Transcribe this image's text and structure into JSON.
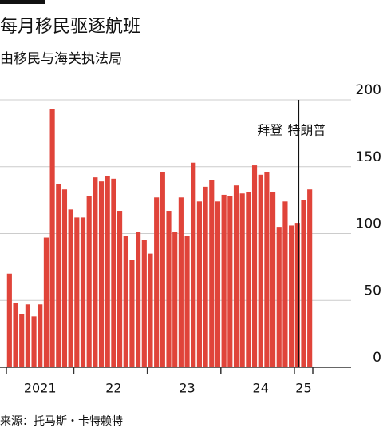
{
  "chart_data": {
    "type": "bar",
    "title": "每月移民驱逐航班",
    "subtitle": "由移民与海关执法局",
    "source": "来源：托马斯・卡特赖特",
    "annotations": [
      "拜登",
      "特朗普"
    ],
    "categories": [
      null,
      null,
      null,
      null,
      null,
      "2021",
      null,
      null,
      null,
      null,
      null,
      null,
      null,
      null,
      null,
      null,
      null,
      "22",
      null,
      null,
      null,
      null,
      null,
      null,
      null,
      null,
      null,
      null,
      null,
      "23",
      null,
      null,
      null,
      null,
      null,
      null,
      null,
      null,
      null,
      null,
      null,
      "24",
      null,
      null,
      null,
      null,
      null,
      null,
      "25",
      null
    ],
    "values": [
      70,
      48,
      40,
      47,
      38,
      47,
      97,
      193,
      137,
      133,
      118,
      112,
      112,
      128,
      142,
      139,
      143,
      141,
      117,
      98,
      80,
      101,
      95,
      85,
      127,
      146,
      117,
      101,
      127,
      98,
      153,
      124,
      135,
      140,
      124,
      129,
      128,
      136,
      130,
      131,
      151,
      144,
      146,
      131,
      105,
      124,
      106,
      108,
      125,
      133
    ],
    "color": "#e0443a",
    "ylim": [
      0,
      200
    ],
    "yticks": [
      0,
      50,
      100,
      150,
      200
    ],
    "grid": true
  }
}
